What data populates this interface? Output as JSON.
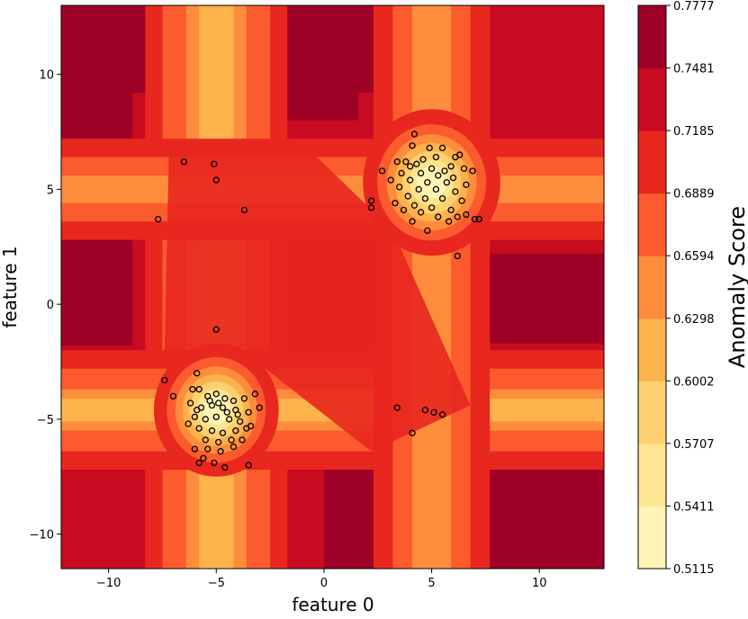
{
  "chart_data": {
    "type": "contour",
    "title": "",
    "xlabel": "feature 0",
    "ylabel": "feature 1",
    "xlim": [
      -12.2,
      13.0
    ],
    "ylim": [
      -11.5,
      13.0
    ],
    "xticks": [
      -10,
      -5,
      0,
      5,
      10
    ],
    "xtick_labels": [
      "−10",
      "−5",
      "0",
      "5",
      "10"
    ],
    "yticks": [
      -10,
      -5,
      0,
      5,
      10
    ],
    "ytick_labels": [
      "−10",
      "−5",
      "0",
      "5",
      "10"
    ],
    "grid": false,
    "colorbar": {
      "label": "Anomaly Score",
      "levels": [
        "0.5115",
        "0.5411",
        "0.5707",
        "0.6002",
        "0.6298",
        "0.6594",
        "0.6889",
        "0.7185",
        "0.7481",
        "0.7777"
      ],
      "colors": [
        "#fff4b5",
        "#fee591",
        "#fed06f",
        "#feb24c",
        "#fd8d3c",
        "#fc5b2e",
        "#e8271f",
        "#c90b22",
        "#9e0026"
      ]
    },
    "clusters": [
      {
        "center": [
          5.0,
          5.3
        ],
        "radius": 2.2
      },
      {
        "center": [
          -5.0,
          -4.6
        ],
        "radius": 2.0
      }
    ],
    "points": [
      [
        4.2,
        7.4
      ],
      [
        4.1,
        6.9
      ],
      [
        4.9,
        6.8
      ],
      [
        5.5,
        6.8
      ],
      [
        6.3,
        6.5
      ],
      [
        6.1,
        6.4
      ],
      [
        3.8,
        6.2
      ],
      [
        4.6,
        6.3
      ],
      [
        5.2,
        6.4
      ],
      [
        5.9,
        6.0
      ],
      [
        3.4,
        6.2
      ],
      [
        4.3,
        6.1
      ],
      [
        4.0,
        6.0
      ],
      [
        5.0,
        5.9
      ],
      [
        5.6,
        5.8
      ],
      [
        6.5,
        5.9
      ],
      [
        6.9,
        5.8
      ],
      [
        2.7,
        5.8
      ],
      [
        3.6,
        5.7
      ],
      [
        4.5,
        5.7
      ],
      [
        5.3,
        5.6
      ],
      [
        6.0,
        5.5
      ],
      [
        3.1,
        5.4
      ],
      [
        4.0,
        5.4
      ],
      [
        4.8,
        5.3
      ],
      [
        5.7,
        5.3
      ],
      [
        6.6,
        5.2
      ],
      [
        3.5,
        5.1
      ],
      [
        4.4,
        5.0
      ],
      [
        5.2,
        5.0
      ],
      [
        6.1,
        4.9
      ],
      [
        3.9,
        4.7
      ],
      [
        4.7,
        4.6
      ],
      [
        5.5,
        4.6
      ],
      [
        6.4,
        4.5
      ],
      [
        2.2,
        4.5
      ],
      [
        3.3,
        4.4
      ],
      [
        4.2,
        4.3
      ],
      [
        5.0,
        4.2
      ],
      [
        5.9,
        4.1
      ],
      [
        2.2,
        4.2
      ],
      [
        3.7,
        4.1
      ],
      [
        4.5,
        4.0
      ],
      [
        5.3,
        3.8
      ],
      [
        6.2,
        3.8
      ],
      [
        6.6,
        3.9
      ],
      [
        7.0,
        3.7
      ],
      [
        7.2,
        3.7
      ],
      [
        4.1,
        3.6
      ],
      [
        5.8,
        3.6
      ],
      [
        4.8,
        3.2
      ],
      [
        6.2,
        2.1
      ],
      [
        -6.5,
        6.2
      ],
      [
        -5.1,
        6.1
      ],
      [
        -5.0,
        5.4
      ],
      [
        -7.7,
        3.7
      ],
      [
        -3.7,
        4.1
      ],
      [
        -5.0,
        -1.1
      ],
      [
        -7.4,
        -3.3
      ],
      [
        -7.0,
        -4.0
      ],
      [
        -5.9,
        -3.0
      ],
      [
        -6.1,
        -3.7
      ],
      [
        -5.8,
        -3.7
      ],
      [
        -5.4,
        -4.0
      ],
      [
        -5.0,
        -3.9
      ],
      [
        -4.6,
        -4.1
      ],
      [
        -4.2,
        -4.2
      ],
      [
        -3.7,
        -4.1
      ],
      [
        -3.2,
        -3.9
      ],
      [
        -6.2,
        -4.3
      ],
      [
        -5.7,
        -4.5
      ],
      [
        -5.2,
        -4.4
      ],
      [
        -4.7,
        -4.5
      ],
      [
        -4.1,
        -4.6
      ],
      [
        -3.5,
        -4.7
      ],
      [
        -3.0,
        -4.5
      ],
      [
        -6.0,
        -4.9
      ],
      [
        -5.5,
        -5.0
      ],
      [
        -5.0,
        -4.9
      ],
      [
        -4.4,
        -5.0
      ],
      [
        -3.9,
        -5.1
      ],
      [
        -3.4,
        -5.3
      ],
      [
        -5.8,
        -5.4
      ],
      [
        -5.2,
        -5.5
      ],
      [
        -4.7,
        -5.6
      ],
      [
        -4.1,
        -5.5
      ],
      [
        -3.6,
        -5.4
      ],
      [
        -5.5,
        -5.9
      ],
      [
        -4.9,
        -6.0
      ],
      [
        -4.3,
        -5.9
      ],
      [
        -3.8,
        -5.9
      ],
      [
        -6.0,
        -6.3
      ],
      [
        -5.4,
        -6.3
      ],
      [
        -4.8,
        -6.4
      ],
      [
        -4.2,
        -6.2
      ],
      [
        -5.6,
        -6.7
      ],
      [
        -5.1,
        -6.9
      ],
      [
        -4.6,
        -7.1
      ],
      [
        -5.8,
        -6.9
      ],
      [
        -3.5,
        -7.0
      ],
      [
        -5.3,
        -4.2
      ],
      [
        -4.9,
        -4.3
      ],
      [
        -6.3,
        -5.2
      ],
      [
        -4.5,
        -4.7
      ],
      [
        -5.9,
        -4.6
      ],
      [
        -4.0,
        -4.8
      ],
      [
        3.4,
        -4.5
      ],
      [
        4.7,
        -4.6
      ],
      [
        5.1,
        -4.7
      ],
      [
        5.5,
        -4.8
      ],
      [
        4.1,
        -5.6
      ]
    ]
  }
}
